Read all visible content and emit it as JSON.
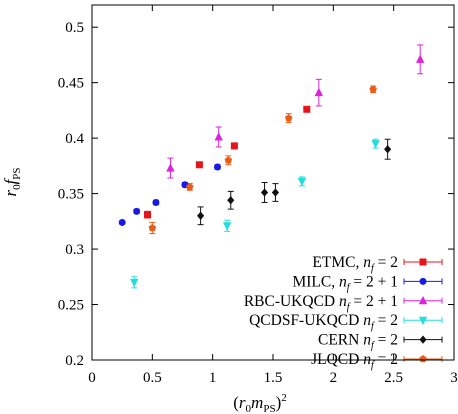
{
  "chart_data": {
    "type": "scatter",
    "title": "",
    "xlabel": "(r₀mₚₛ)²",
    "xlabel_parts": {
      "pre": "(",
      "base": "r",
      "sub1": "0",
      "mid": "m",
      "sub2": "PS",
      "post": ")",
      "sup": "2"
    },
    "ylabel": "r₀fₚₛ",
    "ylabel_parts": {
      "base": "r",
      "sub1": "0",
      "mid": "f",
      "sub2": "PS"
    },
    "xlim": [
      0,
      3
    ],
    "ylim": [
      0.2,
      0.52
    ],
    "xticks": [
      {
        "v": 0,
        "label": "0"
      },
      {
        "v": 0.5,
        "label": "0.5"
      },
      {
        "v": 1,
        "label": "1"
      },
      {
        "v": 1.5,
        "label": "1.5"
      },
      {
        "v": 2,
        "label": "2"
      },
      {
        "v": 2.5,
        "label": "2.5"
      },
      {
        "v": 3,
        "label": "3"
      }
    ],
    "yticks": [
      {
        "v": 0.2,
        "label": "0.2"
      },
      {
        "v": 0.25,
        "label": "0.25"
      },
      {
        "v": 0.3,
        "label": "0.3"
      },
      {
        "v": 0.35,
        "label": "0.35"
      },
      {
        "v": 0.4,
        "label": "0.4"
      },
      {
        "v": 0.45,
        "label": "0.45"
      },
      {
        "v": 0.5,
        "label": "0.5"
      }
    ],
    "grid": false,
    "legend_position": "bottom-right",
    "series": [
      {
        "name": "ETMC, n_f = 2",
        "label_pre": "ETMC, ",
        "label_post": " = 2",
        "color": "#e8141c",
        "marker": "square",
        "points": [
          {
            "x": 0.46,
            "y": 0.331,
            "err": 0.003
          },
          {
            "x": 0.89,
            "y": 0.376,
            "err": 0.002
          },
          {
            "x": 1.18,
            "y": 0.393,
            "err": 0.002
          },
          {
            "x": 1.78,
            "y": 0.426,
            "err": 0.002
          }
        ]
      },
      {
        "name": "MILC, n_f = 2 + 1",
        "label_pre": "MILC, ",
        "label_post": " = 2 + 1",
        "color": "#1a1ae6",
        "marker": "circle",
        "points": [
          {
            "x": 0.25,
            "y": 0.324,
            "err": 0.001
          },
          {
            "x": 0.37,
            "y": 0.334,
            "err": 0.002
          },
          {
            "x": 0.53,
            "y": 0.342,
            "err": 0.002
          },
          {
            "x": 0.77,
            "y": 0.358,
            "err": 0.002
          },
          {
            "x": 1.04,
            "y": 0.374,
            "err": 0.002
          }
        ]
      },
      {
        "name": "RBC-UKQCD n_f = 2 + 1",
        "label_pre": "RBC-UKQCD ",
        "label_post": " = 2 + 1",
        "color": "#dd22dd",
        "marker": "triangle-up",
        "points": [
          {
            "x": 0.65,
            "y": 0.373,
            "err": 0.009
          },
          {
            "x": 1.05,
            "y": 0.401,
            "err": 0.009
          },
          {
            "x": 1.88,
            "y": 0.441,
            "err": 0.012
          },
          {
            "x": 2.72,
            "y": 0.471,
            "err": 0.013
          }
        ]
      },
      {
        "name": "QCDSF-UKQCD n_f = 2",
        "label_pre": "QCDSF-UKQCD ",
        "label_post": " = 2",
        "color": "#22dddd",
        "marker": "triangle-down",
        "points": [
          {
            "x": 0.35,
            "y": 0.27,
            "err": 0.005
          },
          {
            "x": 1.12,
            "y": 0.321,
            "err": 0.005
          },
          {
            "x": 1.74,
            "y": 0.361,
            "err": 0.004
          },
          {
            "x": 2.35,
            "y": 0.395,
            "err": 0.004
          }
        ]
      },
      {
        "name": "CERN n_f = 2",
        "label_pre": "CERN ",
        "label_post": " = 2",
        "color": "#111111",
        "marker": "diamond",
        "points": [
          {
            "x": 0.9,
            "y": 0.33,
            "err": 0.008
          },
          {
            "x": 1.15,
            "y": 0.344,
            "err": 0.008
          },
          {
            "x": 1.43,
            "y": 0.351,
            "err": 0.009
          },
          {
            "x": 1.52,
            "y": 0.351,
            "err": 0.008
          },
          {
            "x": 2.45,
            "y": 0.39,
            "err": 0.009
          }
        ]
      },
      {
        "name": "JLQCD n_f = 2",
        "label_pre": "JLQCD ",
        "label_post": " = 2",
        "color": "#e85d1a",
        "marker": "pentagon",
        "points": [
          {
            "x": 0.5,
            "y": 0.319,
            "err": 0.005
          },
          {
            "x": 0.81,
            "y": 0.356,
            "err": 0.003
          },
          {
            "x": 1.13,
            "y": 0.38,
            "err": 0.004
          },
          {
            "x": 1.63,
            "y": 0.418,
            "err": 0.004
          },
          {
            "x": 2.33,
            "y": 0.444,
            "err": 0.003
          }
        ]
      }
    ]
  }
}
